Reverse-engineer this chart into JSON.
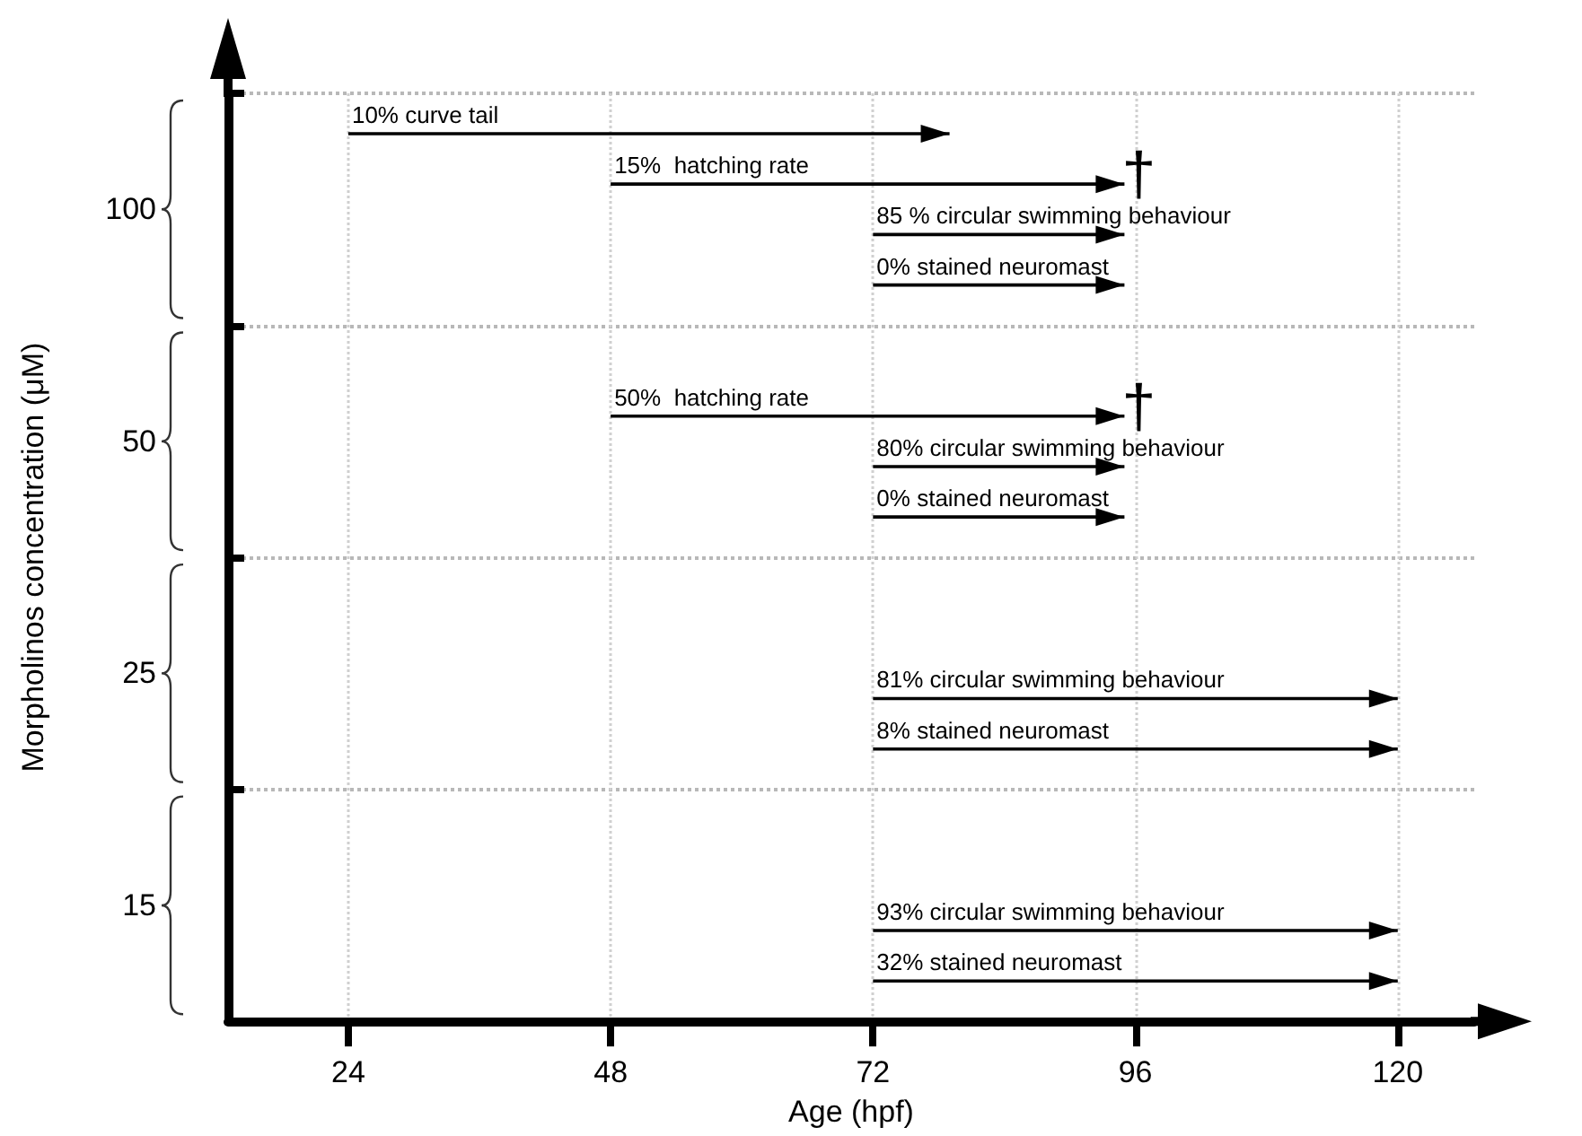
{
  "chart_data": {
    "type": "bar",
    "orientation": "horizontal",
    "xlabel": "Age (hpf)",
    "ylabel": "Morpholinos concentration (μM)",
    "categories": [
      "100",
      "50",
      "25",
      "15"
    ],
    "series": [
      {
        "color": "#000000",
        "base": [
          24,
          null,
          null,
          null
        ],
        "values": [
          55,
          null,
          null,
          null
        ]
      },
      {
        "color": "#000000",
        "base": [
          48,
          48,
          null,
          null
        ],
        "values": [
          47,
          47,
          null,
          null
        ]
      },
      {
        "color": "#000000",
        "base": [
          72,
          72,
          72,
          72
        ],
        "values": [
          23,
          23,
          48,
          48
        ]
      },
      {
        "color": "#000000",
        "base": [
          72,
          72,
          72,
          72
        ],
        "values": [
          23,
          23,
          48,
          48
        ]
      }
    ],
    "xlim": [
      13,
      127
    ],
    "xticks": [
      24,
      48,
      72,
      96,
      120
    ],
    "grid": true,
    "annotations": [
      "10% curve tail",
      "15%  hatching rate",
      "85 % circular swimming behaviour",
      "0% stained neuromast",
      "50%  hatching rate",
      "80% circular swimming behaviour",
      "0% stained neuromast",
      "81% circular swimming behaviour",
      "8% stained neuromast",
      "93% circular swimming behaviour",
      "32% stained neuromast",
      "†",
      "†"
    ]
  }
}
